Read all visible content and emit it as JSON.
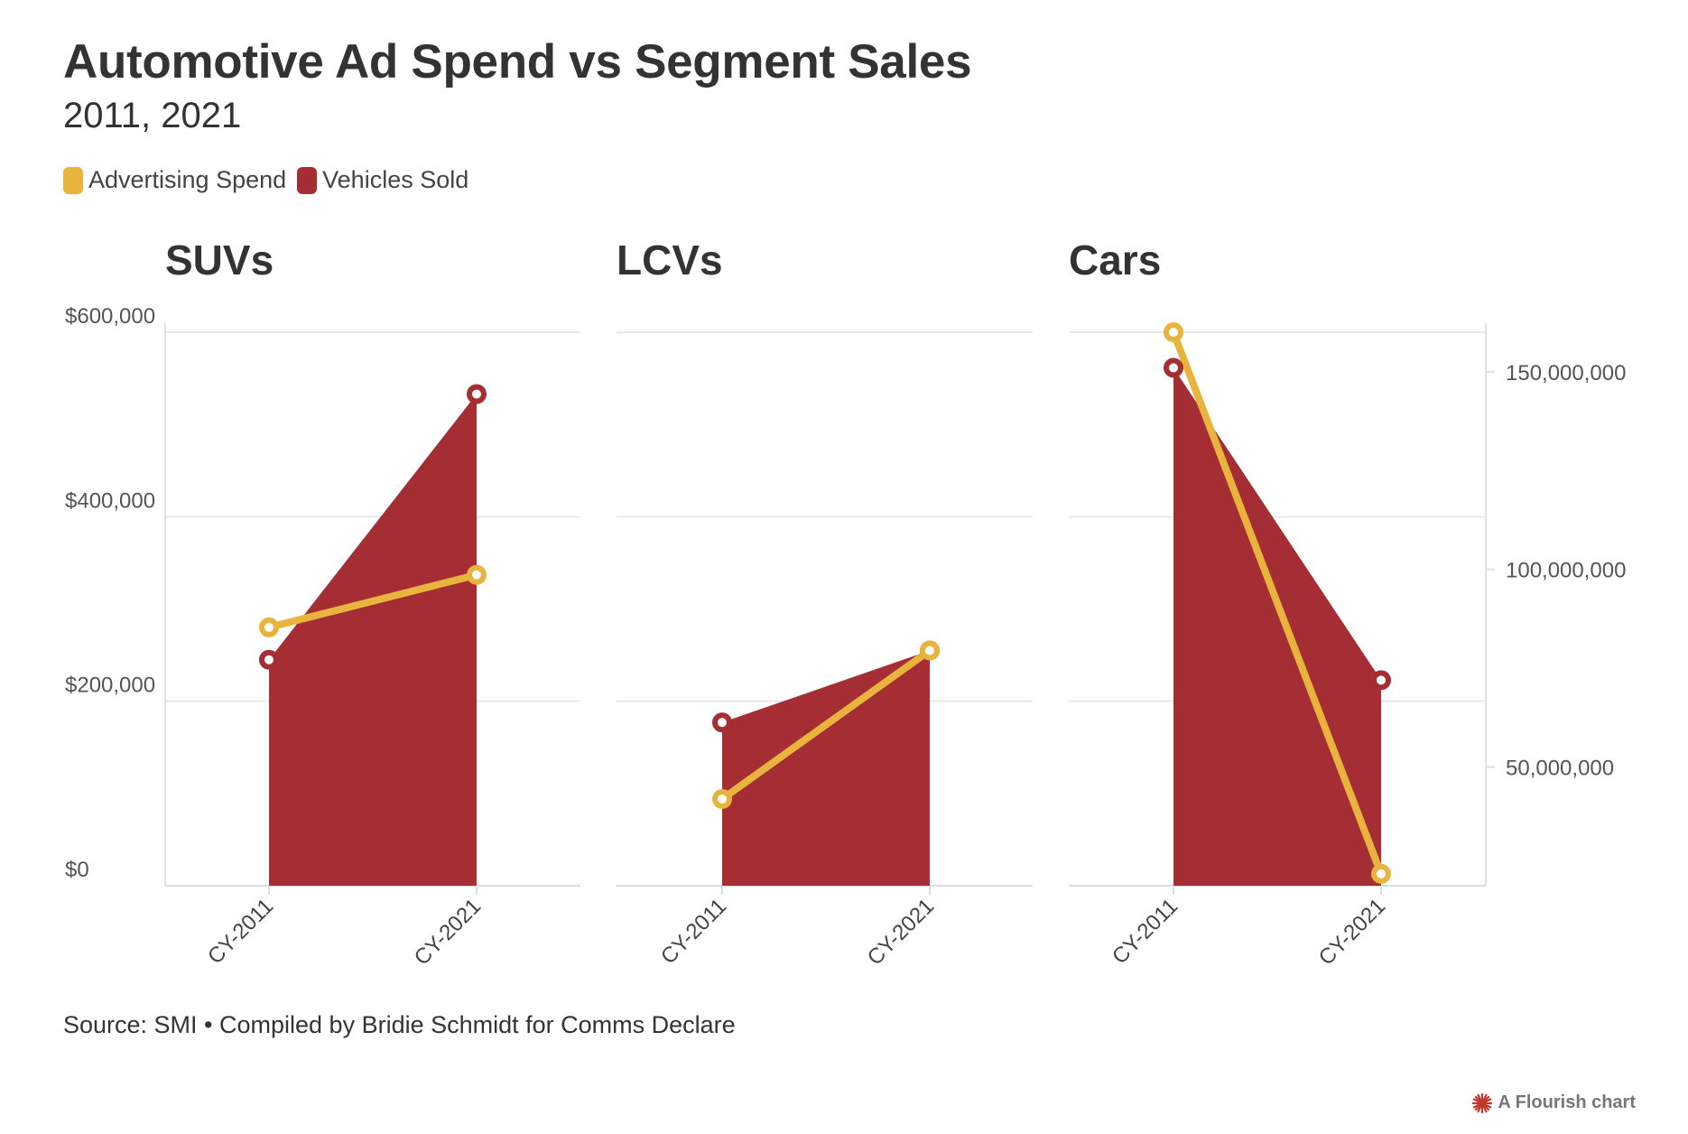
{
  "title": "Automotive Ad Spend vs Segment Sales",
  "subtitle": "2011, 2021",
  "legend": [
    {
      "label": "Advertising Spend",
      "color": "#e8b43e"
    },
    {
      "label": "Vehicles Sold",
      "color": "#a52e34"
    }
  ],
  "source": "Source: SMI • Compiled by Bridie Schmidt for Comms Declare",
  "credit": "A Flourish chart",
  "chart_data": {
    "type": "line",
    "categories": [
      "CY-2011",
      "CY-2021"
    ],
    "left_axis": {
      "ticks": [
        0,
        200000,
        400000,
        600000
      ],
      "tick_labels": [
        "$0",
        "$200,000",
        "$400,000",
        "$600,000"
      ],
      "ylim": [
        0,
        600000
      ]
    },
    "right_axis": {
      "ticks": [
        50000000,
        100000000,
        150000000
      ],
      "tick_labels": [
        "50,000,000",
        "100,000,000",
        "150,000,000"
      ],
      "ylim": [
        20000000,
        160000000
      ]
    },
    "grid": true,
    "legend_position": "top-left",
    "panels": [
      {
        "title": "SUVs",
        "series": [
          {
            "name": "Advertising Spend",
            "style": "line",
            "axis": "left",
            "values": [
              280000,
              337000
            ]
          },
          {
            "name": "Vehicles Sold",
            "style": "area",
            "axis": "left",
            "values": [
              245000,
              533000
            ]
          }
        ]
      },
      {
        "title": "LCVs",
        "series": [
          {
            "name": "Advertising Spend",
            "style": "line",
            "axis": "left",
            "values": [
              94000,
              255000
            ]
          },
          {
            "name": "Vehicles Sold",
            "style": "area",
            "axis": "left",
            "values": [
              177000,
              255000
            ]
          }
        ]
      },
      {
        "title": "Cars",
        "series": [
          {
            "name": "Advertising Spend",
            "style": "line",
            "axis": "right",
            "values": [
              160000000,
              23000000
            ]
          },
          {
            "name": "Vehicles Sold",
            "style": "area",
            "axis": "right",
            "values": [
              151000000,
              72000000
            ]
          }
        ]
      }
    ]
  }
}
